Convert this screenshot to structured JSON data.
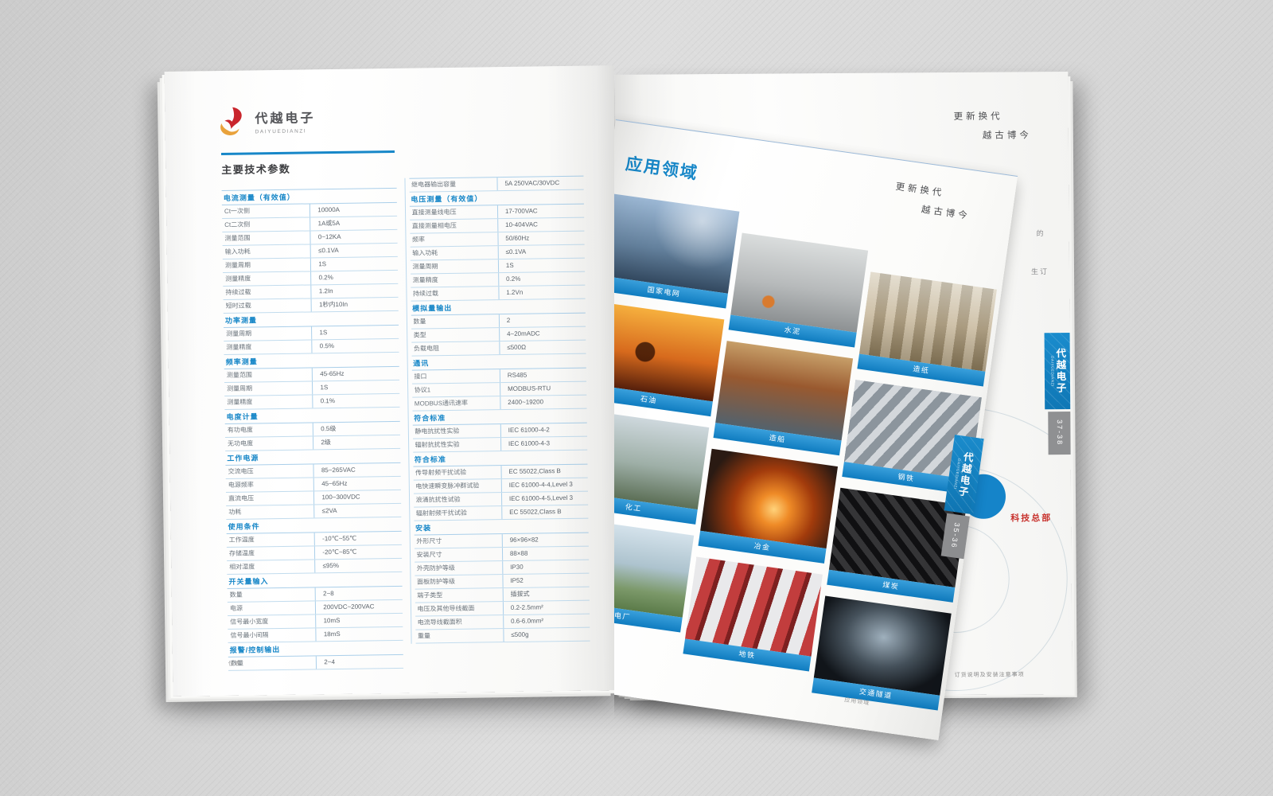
{
  "logo": {
    "name_cn": "代越电子",
    "name_en": "DAIYUEDIANZI"
  },
  "colors": {
    "accent": "#1787c8",
    "caption_bar": "#1e8fd0",
    "logo_red": "#c9252c",
    "logo_yellow": "#e9a23b",
    "tab_gray": "#8f9092",
    "hq_red": "#c8332e"
  },
  "left_page": {
    "heading": "主要技术参数",
    "footer": "仪表",
    "table_left": [
      {
        "type": "section",
        "label": "电流测量（有效值）"
      },
      {
        "type": "row",
        "label": "Ct一次侧",
        "value": "10000A"
      },
      {
        "type": "row",
        "label": "Ct二次侧",
        "value": "1A或5A"
      },
      {
        "type": "row",
        "label": "测量范围",
        "value": "0~12KA"
      },
      {
        "type": "row",
        "label": "输入功耗",
        "value": "≤0.1VA"
      },
      {
        "type": "row",
        "label": "测量周期",
        "value": "1S"
      },
      {
        "type": "row",
        "label": "测量精度",
        "value": "0.2%"
      },
      {
        "type": "row",
        "label": "持续过载",
        "value": "1.2In"
      },
      {
        "type": "row",
        "label": "短时过载",
        "value": "1秒内10In"
      },
      {
        "type": "section",
        "label": "功率测量"
      },
      {
        "type": "row",
        "label": "测量周期",
        "value": "1S"
      },
      {
        "type": "row",
        "label": "测量精度",
        "value": "0.5%"
      },
      {
        "type": "section",
        "label": "频率测量"
      },
      {
        "type": "row",
        "label": "测量范围",
        "value": "45-65Hz"
      },
      {
        "type": "row",
        "label": "测量周期",
        "value": "1S"
      },
      {
        "type": "row",
        "label": "测量精度",
        "value": "0.1%"
      },
      {
        "type": "section",
        "label": "电度计量"
      },
      {
        "type": "row",
        "label": "有功电度",
        "value": "0.5级"
      },
      {
        "type": "row",
        "label": "无功电度",
        "value": "2级"
      },
      {
        "type": "section",
        "label": "工作电源"
      },
      {
        "type": "row",
        "label": "交流电压",
        "value": "85~265VAC"
      },
      {
        "type": "row",
        "label": "电源频率",
        "value": "45~65Hz"
      },
      {
        "type": "row",
        "label": "直流电压",
        "value": "100~300VDC"
      },
      {
        "type": "row",
        "label": "功耗",
        "value": "≤2VA"
      },
      {
        "type": "section",
        "label": "使用条件"
      },
      {
        "type": "row",
        "label": "工作温度",
        "value": "-10℃~55℃"
      },
      {
        "type": "row",
        "label": "存储温度",
        "value": "-20℃~85℃"
      },
      {
        "type": "row",
        "label": "相对湿度",
        "value": "≤95%"
      },
      {
        "type": "section",
        "label": "开关量输入"
      },
      {
        "type": "row",
        "label": "数量",
        "value": "2~8"
      },
      {
        "type": "row",
        "label": "电源",
        "value": "200VDC~200VAC"
      },
      {
        "type": "row",
        "label": "信号最小宽度",
        "value": "10mS"
      },
      {
        "type": "row",
        "label": "信号最小间隔",
        "value": "18mS"
      },
      {
        "type": "section",
        "label": "报警/控制输出"
      },
      {
        "type": "row",
        "label": "数量",
        "value": "2~4"
      }
    ],
    "table_right": [
      {
        "type": "row",
        "label": "继电器输出容量",
        "value": "5A 250VAC/30VDC"
      },
      {
        "type": "section",
        "label": "电压测量（有效值）"
      },
      {
        "type": "row",
        "label": "直接测量线电压",
        "value": "17-700VAC"
      },
      {
        "type": "row",
        "label": "直接测量相电压",
        "value": "10-404VAC"
      },
      {
        "type": "row",
        "label": "频率",
        "value": "50/60Hz"
      },
      {
        "type": "row",
        "label": "输入功耗",
        "value": "≤0.1VA"
      },
      {
        "type": "row",
        "label": "测量周期",
        "value": "1S"
      },
      {
        "type": "row",
        "label": "测量精度",
        "value": "0.2%"
      },
      {
        "type": "row",
        "label": "持续过载",
        "value": "1.2Vn"
      },
      {
        "type": "section",
        "label": "模拟量输出"
      },
      {
        "type": "row",
        "label": "数量",
        "value": "2"
      },
      {
        "type": "row",
        "label": "类型",
        "value": "4~20mADC"
      },
      {
        "type": "row",
        "label": "负载电阻",
        "value": "≤500Ω"
      },
      {
        "type": "section",
        "label": "通讯"
      },
      {
        "type": "row",
        "label": "接口",
        "value": "RS485"
      },
      {
        "type": "row",
        "label": "协议1",
        "value": "MODBUS-RTU"
      },
      {
        "type": "row",
        "label": "MODBUS通讯速率",
        "value": "2400~19200"
      },
      {
        "type": "section",
        "label": "符合标准"
      },
      {
        "type": "row",
        "label": "静电抗扰性实验",
        "value": "IEC 61000-4-2"
      },
      {
        "type": "row",
        "label": "辐射抗扰性实验",
        "value": "IEC 61000-4-3"
      },
      {
        "type": "section",
        "label": "符合标准"
      },
      {
        "type": "row",
        "label": "传导射频干扰试验",
        "value": "EC 55022,Class B"
      },
      {
        "type": "row",
        "label": "电快速瞬变脉冲群试验",
        "value": "IEC 61000-4-4,Level 3"
      },
      {
        "type": "row",
        "label": "浪涌抗扰性试验",
        "value": "IEC 61000-4-5,Level 3"
      },
      {
        "type": "row",
        "label": "辐射射频干扰试验",
        "value": "EC 55022,Class B"
      },
      {
        "type": "section",
        "label": "安装"
      },
      {
        "type": "row",
        "label": "外形尺寸",
        "value": "96×96×82"
      },
      {
        "type": "row",
        "label": "安装尺寸",
        "value": "88×88"
      },
      {
        "type": "row",
        "label": "外壳防护等级",
        "value": "IP30"
      },
      {
        "type": "row",
        "label": "面板防护等级",
        "value": "IP52"
      },
      {
        "type": "row",
        "label": "端子类型",
        "value": "插拔式"
      },
      {
        "type": "row",
        "label": "电压及其他导线截面",
        "value": "0.2-2.5mm²"
      },
      {
        "type": "row",
        "label": "电流导线截面积",
        "value": "0.6-6.0mm²"
      },
      {
        "type": "row",
        "label": "重量",
        "value": "≤500g"
      }
    ]
  },
  "right_page": {
    "title": "应用领域",
    "tagline1": "更新换代",
    "tagline2": "越古博今",
    "footer": "应用领域",
    "tab_cn": "代越电子",
    "tab_en": "DAIYUEDIANZI",
    "tab_pages": "35-36",
    "photos": [
      {
        "name": "power-grid",
        "caption": "国家电网"
      },
      {
        "name": "cement",
        "caption": "水泥"
      },
      {
        "name": "papermaking",
        "caption": "造纸"
      },
      {
        "name": "oil",
        "caption": "石油"
      },
      {
        "name": "shipbuilding",
        "caption": "造船"
      },
      {
        "name": "steel",
        "caption": "钢铁"
      },
      {
        "name": "chemical",
        "caption": "化工"
      },
      {
        "name": "metallurgy",
        "caption": "冶金"
      },
      {
        "name": "coal",
        "caption": "煤炭"
      },
      {
        "name": "power-plant",
        "caption": "发电厂"
      },
      {
        "name": "subway",
        "caption": "地铁"
      },
      {
        "name": "tunnel",
        "caption": "交通隧道"
      }
    ]
  },
  "back_page": {
    "tagline1": "更新换代",
    "tagline2": "越古博今",
    "fragment1": "的",
    "fragment2": "生订",
    "hq_text": "科技总部",
    "footer": "订货说明及安装注意事项",
    "tab_cn": "代越电子",
    "tab_en": "DAIYUEDIANZI",
    "tab_pages": "37-38"
  }
}
